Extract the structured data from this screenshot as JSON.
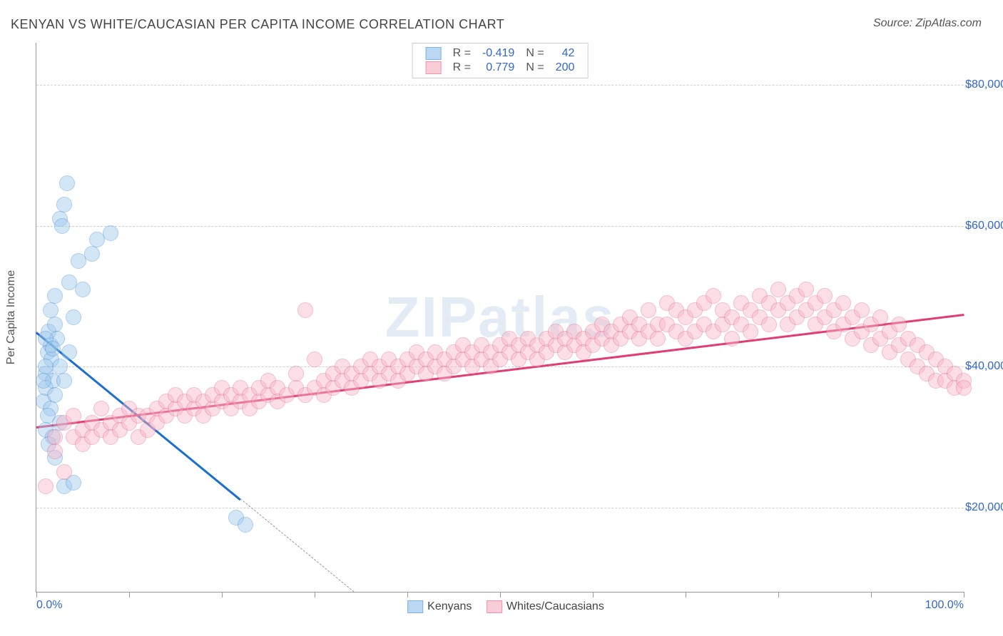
{
  "title": "KENYAN VS WHITE/CAUCASIAN PER CAPITA INCOME CORRELATION CHART",
  "source": "Source: ZipAtlas.com",
  "watermark": "ZIPatlas",
  "y_title": "Per Capita Income",
  "x_min_label": "0.0%",
  "x_max_label": "100.0%",
  "x_range": [
    0,
    100
  ],
  "y_range": [
    8000,
    86000
  ],
  "y_gridlines": [
    {
      "v": 20000,
      "label": "$20,000"
    },
    {
      "v": 40000,
      "label": "$40,000"
    },
    {
      "v": 60000,
      "label": "$60,000"
    },
    {
      "v": 80000,
      "label": "$80,000"
    }
  ],
  "x_ticks": [
    0,
    10,
    20,
    30,
    40,
    50,
    60,
    70,
    80,
    90,
    100
  ],
  "marker_radius": 10,
  "marker_stroke": 1.5,
  "series": [
    {
      "name": "Kenyans",
      "r": "-0.419",
      "n": "42",
      "fill": "#9ec8ec",
      "stroke": "#4a90d9",
      "fill_opacity": 0.45,
      "trend": {
        "color": "#1a6fd1",
        "width": 2.5,
        "y_at_x0": 45000,
        "y_at_x100": -63000,
        "solid_until_x": 22
      },
      "points": [
        [
          1.2,
          42000
        ],
        [
          1.0,
          39000
        ],
        [
          1.3,
          45000
        ],
        [
          1.6,
          41000
        ],
        [
          1.8,
          38000
        ],
        [
          0.8,
          35000
        ],
        [
          1.0,
          37000
        ],
        [
          1.5,
          43000
        ],
        [
          2.0,
          46000
        ],
        [
          2.2,
          44000
        ],
        [
          2.5,
          40000
        ],
        [
          2.0,
          36000
        ],
        [
          1.5,
          34000
        ],
        [
          1.2,
          33000
        ],
        [
          1.0,
          31000
        ],
        [
          1.8,
          30000
        ],
        [
          2.5,
          32000
        ],
        [
          3.0,
          38000
        ],
        [
          3.5,
          42000
        ],
        [
          4.0,
          47000
        ],
        [
          5.0,
          51000
        ],
        [
          6.5,
          58000
        ],
        [
          3.0,
          63000
        ],
        [
          3.3,
          66000
        ],
        [
          2.5,
          61000
        ],
        [
          2.8,
          60000
        ],
        [
          4.5,
          55000
        ],
        [
          6.0,
          56000
        ],
        [
          8.0,
          59000
        ],
        [
          3.5,
          52000
        ],
        [
          2.0,
          50000
        ],
        [
          1.5,
          48000
        ],
        [
          1.0,
          40000
        ],
        [
          0.8,
          38000
        ],
        [
          1.3,
          29000
        ],
        [
          2.0,
          27000
        ],
        [
          3.0,
          23000
        ],
        [
          4.0,
          23500
        ],
        [
          21.5,
          18500
        ],
        [
          22.5,
          17500
        ],
        [
          1.0,
          44000
        ],
        [
          1.8,
          42500
        ]
      ]
    },
    {
      "name": "Whites/Caucasians",
      "r": "0.779",
      "n": "200",
      "fill": "#f7b8c8",
      "stroke": "#e86a8f",
      "fill_opacity": 0.45,
      "trend": {
        "color": "#e23d73",
        "width": 2.5,
        "y_at_x0": 31500,
        "y_at_x100": 47500,
        "solid_until_x": 100
      },
      "points": [
        [
          1,
          23000
        ],
        [
          2,
          28000
        ],
        [
          2,
          30000
        ],
        [
          3,
          25000
        ],
        [
          3,
          32000
        ],
        [
          4,
          30000
        ],
        [
          4,
          33000
        ],
        [
          5,
          29000
        ],
        [
          5,
          31000
        ],
        [
          6,
          30000
        ],
        [
          6,
          32000
        ],
        [
          7,
          31000
        ],
        [
          7,
          34000
        ],
        [
          8,
          32000
        ],
        [
          8,
          30000
        ],
        [
          9,
          33000
        ],
        [
          9,
          31000
        ],
        [
          10,
          32000
        ],
        [
          10,
          34000
        ],
        [
          11,
          33000
        ],
        [
          11,
          30000
        ],
        [
          12,
          31000
        ],
        [
          12,
          33000
        ],
        [
          13,
          32000
        ],
        [
          13,
          34000
        ],
        [
          14,
          33000
        ],
        [
          14,
          35000
        ],
        [
          15,
          34000
        ],
        [
          15,
          36000
        ],
        [
          16,
          33000
        ],
        [
          16,
          35000
        ],
        [
          17,
          34000
        ],
        [
          17,
          36000
        ],
        [
          18,
          35000
        ],
        [
          18,
          33000
        ],
        [
          19,
          34000
        ],
        [
          19,
          36000
        ],
        [
          20,
          35000
        ],
        [
          20,
          37000
        ],
        [
          21,
          34000
        ],
        [
          21,
          36000
        ],
        [
          22,
          35000
        ],
        [
          22,
          37000
        ],
        [
          23,
          36000
        ],
        [
          23,
          34000
        ],
        [
          24,
          35000
        ],
        [
          24,
          37000
        ],
        [
          25,
          36000
        ],
        [
          25,
          38000
        ],
        [
          26,
          37000
        ],
        [
          26,
          35000
        ],
        [
          27,
          36000
        ],
        [
          28,
          37000
        ],
        [
          28,
          39000
        ],
        [
          29,
          36000
        ],
        [
          29,
          48000
        ],
        [
          30,
          37000
        ],
        [
          30,
          41000
        ],
        [
          31,
          38000
        ],
        [
          31,
          36000
        ],
        [
          32,
          37000
        ],
        [
          32,
          39000
        ],
        [
          33,
          38000
        ],
        [
          33,
          40000
        ],
        [
          34,
          39000
        ],
        [
          34,
          37000
        ],
        [
          35,
          38000
        ],
        [
          35,
          40000
        ],
        [
          36,
          39000
        ],
        [
          36,
          41000
        ],
        [
          37,
          38000
        ],
        [
          37,
          40000
        ],
        [
          38,
          39000
        ],
        [
          38,
          41000
        ],
        [
          39,
          40000
        ],
        [
          39,
          38000
        ],
        [
          40,
          39000
        ],
        [
          40,
          41000
        ],
        [
          41,
          40000
        ],
        [
          41,
          42000
        ],
        [
          42,
          41000
        ],
        [
          42,
          39000
        ],
        [
          43,
          40000
        ],
        [
          43,
          42000
        ],
        [
          44,
          41000
        ],
        [
          44,
          39000
        ],
        [
          45,
          40000
        ],
        [
          45,
          42000
        ],
        [
          46,
          41000
        ],
        [
          46,
          43000
        ],
        [
          47,
          40000
        ],
        [
          47,
          42000
        ],
        [
          48,
          41000
        ],
        [
          48,
          43000
        ],
        [
          49,
          42000
        ],
        [
          49,
          40000
        ],
        [
          50,
          41000
        ],
        [
          50,
          43000
        ],
        [
          51,
          42000
        ],
        [
          51,
          44000
        ],
        [
          52,
          41000
        ],
        [
          52,
          43000
        ],
        [
          53,
          42000
        ],
        [
          53,
          44000
        ],
        [
          54,
          43000
        ],
        [
          54,
          41000
        ],
        [
          55,
          42000
        ],
        [
          55,
          44000
        ],
        [
          56,
          43000
        ],
        [
          56,
          45000
        ],
        [
          57,
          42000
        ],
        [
          57,
          44000
        ],
        [
          58,
          43000
        ],
        [
          58,
          45000
        ],
        [
          59,
          44000
        ],
        [
          59,
          42000
        ],
        [
          60,
          43000
        ],
        [
          60,
          45000
        ],
        [
          61,
          44000
        ],
        [
          61,
          46000
        ],
        [
          62,
          45000
        ],
        [
          62,
          43000
        ],
        [
          63,
          44000
        ],
        [
          63,
          46000
        ],
        [
          64,
          45000
        ],
        [
          64,
          47000
        ],
        [
          65,
          44000
        ],
        [
          65,
          46000
        ],
        [
          66,
          45000
        ],
        [
          66,
          48000
        ],
        [
          67,
          46000
        ],
        [
          67,
          44000
        ],
        [
          68,
          46000
        ],
        [
          68,
          49000
        ],
        [
          69,
          45000
        ],
        [
          69,
          48000
        ],
        [
          70,
          47000
        ],
        [
          70,
          44000
        ],
        [
          71,
          48000
        ],
        [
          71,
          45000
        ],
        [
          72,
          49000
        ],
        [
          72,
          46000
        ],
        [
          73,
          50000
        ],
        [
          73,
          45000
        ],
        [
          74,
          48000
        ],
        [
          74,
          46000
        ],
        [
          75,
          47000
        ],
        [
          75,
          44000
        ],
        [
          76,
          49000
        ],
        [
          76,
          46000
        ],
        [
          77,
          48000
        ],
        [
          77,
          45000
        ],
        [
          78,
          50000
        ],
        [
          78,
          47000
        ],
        [
          79,
          49000
        ],
        [
          79,
          46000
        ],
        [
          80,
          51000
        ],
        [
          80,
          48000
        ],
        [
          81,
          49000
        ],
        [
          81,
          46000
        ],
        [
          82,
          50000
        ],
        [
          82,
          47000
        ],
        [
          83,
          48000
        ],
        [
          83,
          51000
        ],
        [
          84,
          49000
        ],
        [
          84,
          46000
        ],
        [
          85,
          50000
        ],
        [
          85,
          47000
        ],
        [
          86,
          48000
        ],
        [
          86,
          45000
        ],
        [
          87,
          49000
        ],
        [
          87,
          46000
        ],
        [
          88,
          47000
        ],
        [
          88,
          44000
        ],
        [
          89,
          48000
        ],
        [
          89,
          45000
        ],
        [
          90,
          46000
        ],
        [
          90,
          43000
        ],
        [
          91,
          47000
        ],
        [
          91,
          44000
        ],
        [
          92,
          45000
        ],
        [
          92,
          42000
        ],
        [
          93,
          46000
        ],
        [
          93,
          43000
        ],
        [
          94,
          44000
        ],
        [
          94,
          41000
        ],
        [
          95,
          43000
        ],
        [
          95,
          40000
        ],
        [
          96,
          42000
        ],
        [
          96,
          39000
        ],
        [
          97,
          41000
        ],
        [
          97,
          38000
        ],
        [
          98,
          40000
        ],
        [
          98,
          38000
        ],
        [
          99,
          39000
        ],
        [
          99,
          37000
        ],
        [
          100,
          38000
        ],
        [
          100,
          37000
        ]
      ]
    }
  ]
}
